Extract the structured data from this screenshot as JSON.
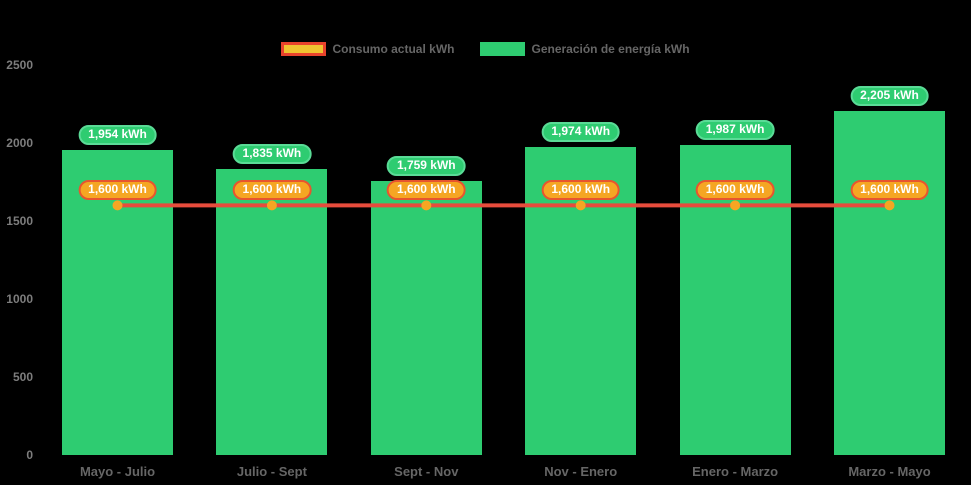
{
  "chart_data": {
    "type": "bar",
    "title": "",
    "categories": [
      "Mayo - Julio",
      "Julio - Sept",
      "Sept - Nov",
      "Nov - Enero",
      "Enero - Marzo",
      "Marzo - Mayo"
    ],
    "series": [
      {
        "name": "Consumo actual kWh",
        "render": "line",
        "values": [
          1600,
          1600,
          1600,
          1600,
          1600,
          1600
        ],
        "labels": [
          "1,600 kWh",
          "1,600 kWh",
          "1,600 kWh",
          "1,600 kWh",
          "1,600 kWh",
          "1,600 kWh"
        ],
        "line_color": "#E74C3C",
        "marker_color": "#F5A623",
        "label_fill": "#F5A623",
        "label_border": "#E7552F"
      },
      {
        "name": "Generación de energía kWh",
        "render": "bar",
        "values": [
          1954,
          1835,
          1759,
          1974,
          1987,
          2205
        ],
        "labels": [
          "1,954 kWh",
          "1,835 kWh",
          "1,759 kWh",
          "1,974 kWh",
          "1,987 kWh",
          "2,205 kWh"
        ],
        "color": "#2ECC71",
        "label_fill": "#2ECC71",
        "label_border": "#5ADB96"
      }
    ],
    "ylim": [
      0,
      2500
    ],
    "y_ticks": [
      0,
      500,
      1000,
      1500,
      2000,
      2500
    ],
    "grid": false,
    "legend_position": "top",
    "background": "#000000",
    "axis_text_color": "#7d7d7d",
    "category_text_color": "#666666"
  },
  "legend": {
    "items": [
      {
        "label": "Consumo actual kWh",
        "swatch_fill": "#F0C330",
        "swatch_border": "#E8432C"
      },
      {
        "label": "Generación de energía kWh",
        "swatch_fill": "#2ECC71",
        "swatch_border": "#2ECC71"
      }
    ]
  }
}
